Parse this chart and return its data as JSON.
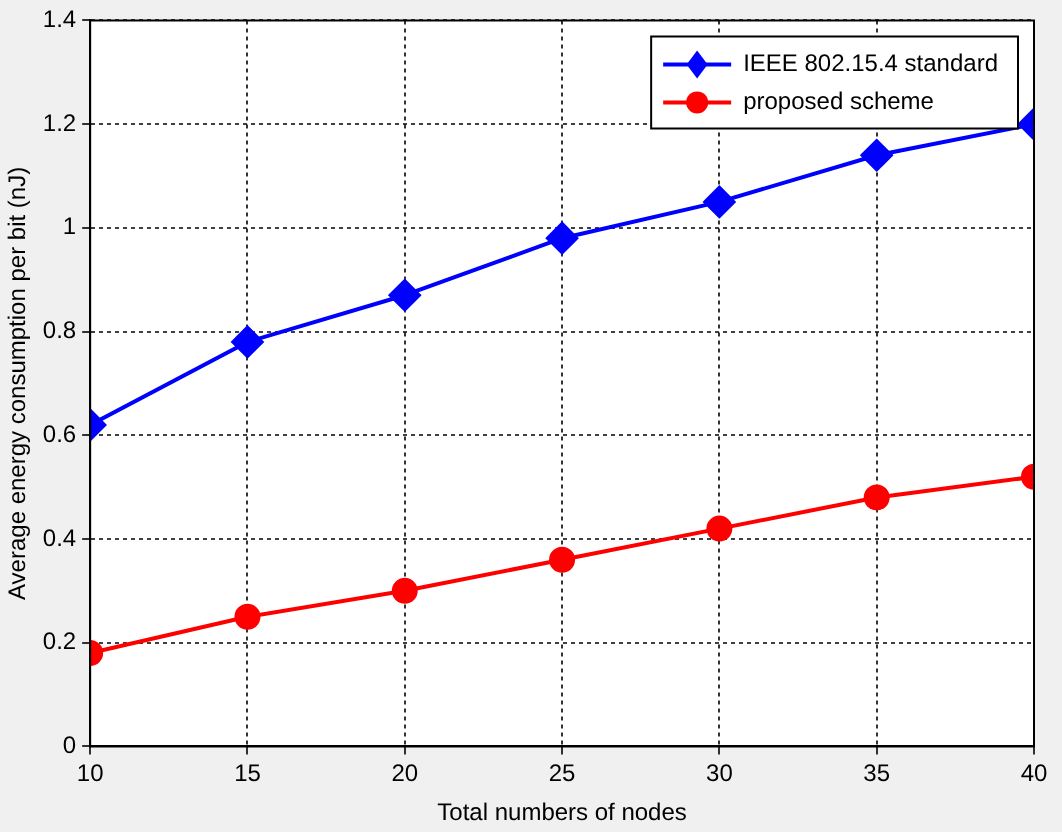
{
  "chart_data": {
    "type": "line",
    "xlabel": "Total numbers of nodes",
    "ylabel": "Average energy consumption per bit (nJ)",
    "x": [
      10,
      15,
      20,
      25,
      30,
      35,
      40
    ],
    "series": [
      {
        "name": "IEEE 802.15.4 standard",
        "color": "#0000ff",
        "marker": "diamond",
        "values": [
          0.62,
          0.78,
          0.87,
          0.98,
          1.05,
          1.14,
          1.2
        ]
      },
      {
        "name": "proposed scheme",
        "color": "#ff0000",
        "marker": "circle",
        "values": [
          0.18,
          0.25,
          0.3,
          0.36,
          0.42,
          0.48,
          0.52
        ]
      }
    ],
    "xlim": [
      10,
      40
    ],
    "xticks": [
      10,
      15,
      20,
      25,
      30,
      35,
      40
    ],
    "ylim": [
      0,
      1.4
    ],
    "yticks": [
      0,
      0.2,
      0.4,
      0.6,
      0.8,
      1,
      1.2,
      1.4
    ],
    "grid": true,
    "legend": "top right",
    "line_style": "solid"
  }
}
